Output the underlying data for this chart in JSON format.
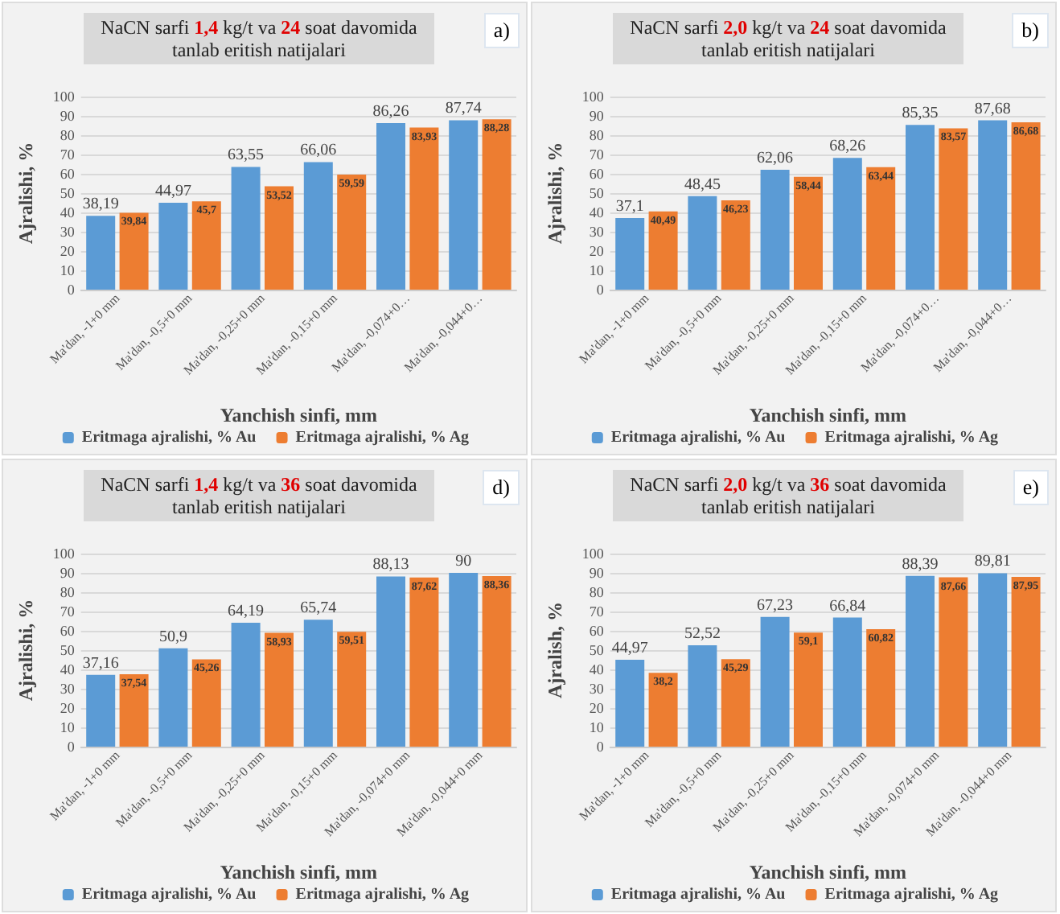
{
  "chart_data": [
    {
      "type": "bar",
      "title": "NaCN sarfi 1,4 kg/t va 24 soat davomida tanlab eritish natijalari",
      "xlabel": "Yanchish sinfi, mm",
      "ylabel": "Ajralishi, %",
      "annotations": [
        "a)"
      ],
      "categories": [
        "Ma'dan, -1+0 mm",
        "Ma'dan, -0,5+0 mm",
        "Ma'dan, -0,25+0 mm",
        "Ma'dan, -0,15+0 mm",
        "Ma'dan, -0,074+0…",
        "Ma'dan, -0,044+0…"
      ],
      "series": [
        {
          "name": "Eritmaga ajralishi, % Au",
          "color": "#5b9bd5",
          "values": [
            38.19,
            44.97,
            63.55,
            66.06,
            86.26,
            87.74
          ],
          "value_labels": [
            "38,19",
            "44,97",
            "63,55",
            "66,06",
            "86,26",
            "87,74"
          ]
        },
        {
          "name": "Eritmaga ajralishi, % Ag",
          "color": "#ed7d31",
          "values": [
            39.84,
            45.7,
            53.52,
            59.59,
            83.93,
            88.28
          ],
          "value_labels": [
            "39,84",
            "45,7",
            "53,52",
            "59,59",
            "83,93",
            "88,28"
          ]
        }
      ],
      "ylim": [
        0,
        100
      ],
      "yticks": [
        0,
        10,
        20,
        30,
        40,
        50,
        60,
        70,
        80,
        90,
        100
      ],
      "grid": "y",
      "legend": "bottom"
    },
    {
      "type": "bar",
      "title": "NaCN sarfi 2,0 kg/t va 24 soat davomida tanlab eritish natijalari",
      "xlabel": "Yanchish sinfi, mm",
      "ylabel": "Ajralishi, %",
      "annotations": [
        "b)"
      ],
      "categories": [
        "Ma'dan, -1+0 mm",
        "Ma'dan, -0,5+0 mm",
        "Ma'dan, -0,25+0 mm",
        "Ma'dan, -0,15+0 mm",
        "Ma'dan, -0,074+0…",
        "Ma'dan, -0,044+0…"
      ],
      "series": [
        {
          "name": "Eritmaga ajralishi, % Au",
          "color": "#5b9bd5",
          "values": [
            37.1,
            48.45,
            62.06,
            68.26,
            85.35,
            87.68
          ],
          "value_labels": [
            "37,1",
            "48,45",
            "62,06",
            "68,26",
            "85,35",
            "87,68"
          ]
        },
        {
          "name": "Eritmaga ajralishi, % Ag",
          "color": "#ed7d31",
          "values": [
            40.49,
            46.23,
            58.44,
            63.44,
            83.57,
            86.68
          ],
          "value_labels": [
            "40,49",
            "46,23",
            "58,44",
            "63,44",
            "83,57",
            "86,68"
          ]
        }
      ],
      "ylim": [
        0,
        100
      ],
      "yticks": [
        0,
        10,
        20,
        30,
        40,
        50,
        60,
        70,
        80,
        90,
        100
      ],
      "grid": "y",
      "legend": "bottom"
    },
    {
      "type": "bar",
      "title": "NaCN sarfi 1,4 kg/t va 36 soat davomida tanlab eritish natijalari",
      "xlabel": "Yanchish sinfi, mm",
      "ylabel": "Ajralishi, %",
      "annotations": [
        "d)"
      ],
      "categories": [
        "Ma'dan, -1+0 mm",
        "Ma'dan, -0,5+0 mm",
        "Ma'dan, -0,25+0 mm",
        "Ma'dan, -0,15+0 mm",
        "Ma'dan, -0,074+0 mm",
        "Ma'dan, -0,044+0 mm"
      ],
      "series": [
        {
          "name": "Eritmaga ajralishi, % Au",
          "color": "#5b9bd5",
          "values": [
            37.16,
            50.9,
            64.19,
            65.74,
            88.13,
            90
          ],
          "value_labels": [
            "37,16",
            "50,9",
            "64,19",
            "65,74",
            "88,13",
            "90"
          ]
        },
        {
          "name": "Eritmaga ajralishi, % Ag",
          "color": "#ed7d31",
          "values": [
            37.54,
            45.26,
            58.93,
            59.51,
            87.62,
            88.36
          ],
          "value_labels": [
            "37,54",
            "45,26",
            "58,93",
            "59,51",
            "87,62",
            "88,36"
          ]
        }
      ],
      "ylim": [
        0,
        100
      ],
      "yticks": [
        0,
        10,
        20,
        30,
        40,
        50,
        60,
        70,
        80,
        90,
        100
      ],
      "grid": "y",
      "legend": "bottom"
    },
    {
      "type": "bar",
      "title": "NaCN sarfi 2,0 kg/t va 36 soat davomida tanlab eritish natijalari",
      "xlabel": "Yanchish sinfi, mm",
      "ylabel": "Ajralish, %",
      "annotations": [
        "e)"
      ],
      "categories": [
        "Ma'dan, -1+0 mm",
        "Ma'dan, -0,5+0 mm",
        "Ma'dan, -0,25+0 mm",
        "Ma'dan, -0,15+0 mm",
        "Ma'dan, -0,074+0 mm",
        "Ma'dan, -0,044+0 mm"
      ],
      "series": [
        {
          "name": "Eritmaga ajralishi, % Au",
          "color": "#5b9bd5",
          "values": [
            44.97,
            52.52,
            67.23,
            66.84,
            88.39,
            89.81
          ],
          "value_labels": [
            "44,97",
            "52,52",
            "67,23",
            "66,84",
            "88,39",
            "89,81"
          ]
        },
        {
          "name": "Eritmaga ajralishi, % Ag",
          "color": "#ed7d31",
          "values": [
            38.2,
            45.29,
            59.1,
            60.82,
            87.66,
            87.95
          ],
          "value_labels": [
            "38,2",
            "45,29",
            "59,1",
            "60,82",
            "87,66",
            "87,95"
          ]
        }
      ],
      "ylim": [
        0,
        100
      ],
      "yticks": [
        0,
        10,
        20,
        30,
        40,
        50,
        60,
        70,
        80,
        90,
        100
      ],
      "grid": "y",
      "legend": "bottom"
    }
  ]
}
